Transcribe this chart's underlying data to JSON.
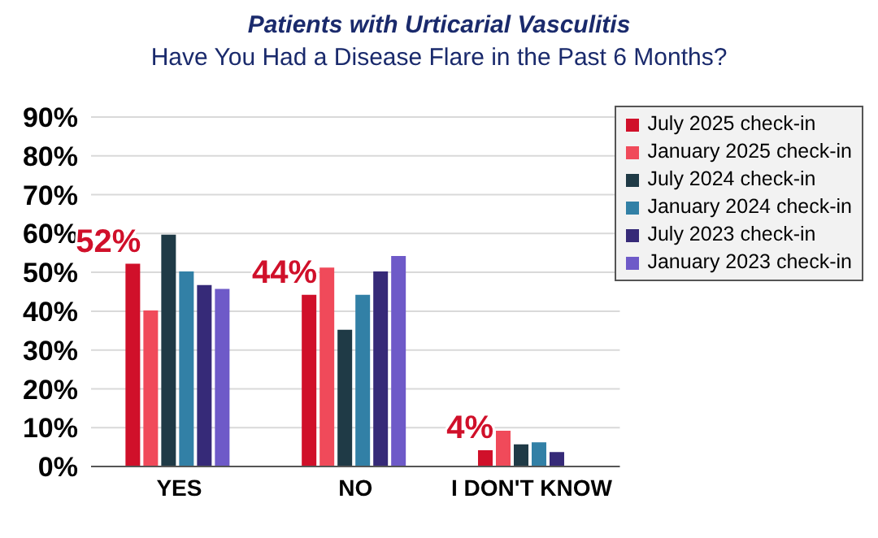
{
  "chart_data": {
    "type": "bar",
    "title": "Patients with Urticarial Vasculitis",
    "subtitle": "Have You Had a Disease Flare in the Past 6 Months?",
    "categories": [
      "YES",
      "NO",
      "I DON'T KNOW"
    ],
    "series": [
      {
        "name": "July 2025 check-in",
        "color": "#d0102a",
        "values": [
          52,
          44,
          4
        ],
        "value_labels": [
          "52%",
          "44%",
          "4%"
        ]
      },
      {
        "name": "January 2025 check-in",
        "color": "#f04a5a",
        "values": [
          40,
          51,
          9
        ]
      },
      {
        "name": "July 2024 check-in",
        "color": "#1f3a46",
        "values": [
          59.5,
          35,
          5.5
        ]
      },
      {
        "name": "January 2024 check-in",
        "color": "#3280a6",
        "values": [
          50,
          44,
          6
        ]
      },
      {
        "name": "July 2023 check-in",
        "color": "#362a78",
        "values": [
          46.5,
          50,
          3.5
        ]
      },
      {
        "name": "January 2023 check-in",
        "color": "#6e5ac8",
        "values": [
          45.5,
          54,
          null
        ]
      }
    ],
    "ylim": [
      0,
      90
    ],
    "yticks": [
      {
        "value": 0,
        "label": "0%"
      },
      {
        "value": 10,
        "label": "10%"
      },
      {
        "value": 20,
        "label": "20%"
      },
      {
        "value": 30,
        "label": "30%"
      },
      {
        "value": 40,
        "label": "40%"
      },
      {
        "value": 50,
        "label": "50%"
      },
      {
        "value": 60,
        "label": "60%"
      },
      {
        "value": 70,
        "label": "70%"
      },
      {
        "value": 80,
        "label": "80%"
      },
      {
        "value": 90,
        "label": "90%"
      }
    ],
    "grid": "y",
    "legend": "top right"
  }
}
